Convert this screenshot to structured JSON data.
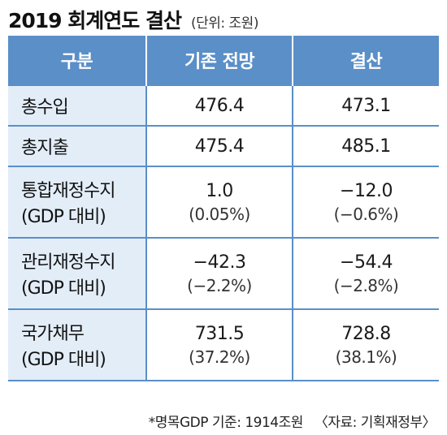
{
  "title": "2019 회계연도 결산",
  "unit": "(단위: 조원)",
  "table": {
    "headers": [
      "구분",
      "기존 전망",
      "결산"
    ],
    "rows": [
      {
        "label": "총수입",
        "label_sub": "",
        "forecast": "476.4",
        "forecast_sub": "",
        "settlement": "473.1",
        "settlement_sub": ""
      },
      {
        "label": "총지출",
        "label_sub": "",
        "forecast": "475.4",
        "forecast_sub": "",
        "settlement": "485.1",
        "settlement_sub": ""
      },
      {
        "label": "통합재정수지",
        "label_sub": "(GDP 대비)",
        "forecast": "1.0",
        "forecast_sub": "(0.05%)",
        "settlement": "−12.0",
        "settlement_sub": "(−0.6%)"
      },
      {
        "label": "관리재정수지",
        "label_sub": "(GDP 대비)",
        "forecast": "−42.3",
        "forecast_sub": "(−2.2%)",
        "settlement": "−54.4",
        "settlement_sub": "(−2.8%)"
      },
      {
        "label": "국가채무",
        "label_sub": "(GDP 대비)",
        "forecast": "731.5",
        "forecast_sub": "(37.2%)",
        "settlement": "728.8",
        "settlement_sub": "(38.1%)"
      }
    ]
  },
  "footnote": "*명목GDP 기준: 1914조원",
  "source": "〈자료: 기획재정부〉",
  "colors": {
    "header_bg": "#5a8fc8",
    "label_bg": "#e3edf8",
    "border": "#5a8fc8"
  }
}
